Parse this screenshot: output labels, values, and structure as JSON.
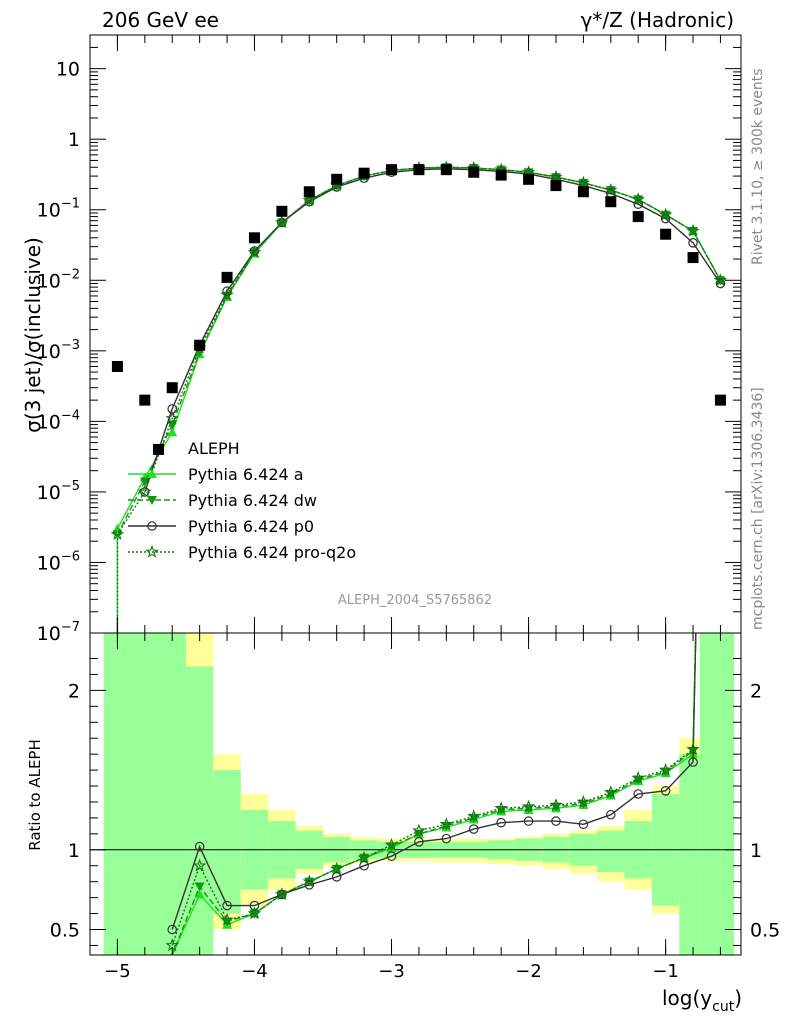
{
  "header": {
    "left": "206 GeV ee",
    "right": "γ*/Z (Hadronic)"
  },
  "side_labels": {
    "rivet": "Rivet 3.1.10, ≥ 300k events",
    "mcplots": "mcplots.cern.ch [arXiv:1306.3436]"
  },
  "watermark": "ALEPH_2004_S5765862",
  "colors": {
    "data": "#000000",
    "a": "#22dd22",
    "dw": "#119911",
    "p0": "#333333",
    "pro": "#117711",
    "band_total": "#ffff99",
    "band_stat": "#99ff99"
  },
  "chart_data": [
    {
      "type": "line",
      "ylabel": "σ(3 jet)/σ(inclusive)",
      "scale": "log",
      "xlim": [
        -5.2,
        -0.45
      ],
      "ylim": [
        1e-07,
        30
      ],
      "yticks": [
        {
          "v": 1e-07,
          "base": "10",
          "exp": "−7"
        },
        {
          "v": 1e-06,
          "base": "10",
          "exp": "−6"
        },
        {
          "v": 1e-05,
          "base": "10",
          "exp": "−5"
        },
        {
          "v": 0.0001,
          "base": "10",
          "exp": "−4"
        },
        {
          "v": 0.001,
          "base": "10",
          "exp": "−3"
        },
        {
          "v": 0.01,
          "base": "10",
          "exp": "−2"
        },
        {
          "v": 0.1,
          "base": "10",
          "exp": "−1"
        },
        {
          "v": 1,
          "base": "1",
          "exp": ""
        },
        {
          "v": 10,
          "base": "10",
          "exp": ""
        }
      ],
      "legend": [
        {
          "key": "data",
          "label": "ALEPH"
        },
        {
          "key": "a",
          "label": "Pythia 6.424 a"
        },
        {
          "key": "dw",
          "label": "Pythia 6.424 dw"
        },
        {
          "key": "p0",
          "label": "Pythia 6.424 p0"
        },
        {
          "key": "pro",
          "label": "Pythia 6.424 pro-q2o"
        }
      ],
      "data_points": {
        "x": [
          -5.0,
          -4.8,
          -4.7,
          -4.6,
          -4.4,
          -4.2,
          -4.0,
          -3.8,
          -3.6,
          -3.4,
          -3.2,
          -3.0,
          -2.8,
          -2.6,
          -2.4,
          -2.2,
          -2.0,
          -1.8,
          -1.6,
          -1.4,
          -1.2,
          -1.0,
          -0.8,
          -0.6
        ],
        "y": [
          0.0006,
          0.0002,
          4e-05,
          0.0003,
          0.0012,
          0.011,
          0.04,
          0.095,
          0.18,
          0.27,
          0.33,
          0.37,
          0.37,
          0.37,
          0.34,
          0.31,
          0.27,
          0.22,
          0.18,
          0.13,
          0.08,
          0.045,
          0.021,
          0.0002
        ]
      },
      "series": [
        {
          "key": "a",
          "x": [
            -5.0,
            -4.8,
            -4.6,
            -4.4,
            -4.2,
            -4.0,
            -3.8,
            -3.6,
            -3.4,
            -3.2,
            -3.0,
            -2.8,
            -2.6,
            -2.4,
            -2.2,
            -2.0,
            -1.8,
            -1.6,
            -1.4,
            -1.2,
            -1.0,
            -0.8,
            -0.6
          ],
          "y": [
            3e-06,
            1.6e-05,
            7e-05,
            0.0009,
            0.0058,
            0.024,
            0.065,
            0.135,
            0.22,
            0.3,
            0.36,
            0.39,
            0.4,
            0.39,
            0.37,
            0.34,
            0.29,
            0.24,
            0.19,
            0.14,
            0.085,
            0.05,
            0.01
          ]
        },
        {
          "key": "dw",
          "x": [
            -5.0,
            -4.8,
            -4.6,
            -4.4,
            -4.2,
            -4.0,
            -3.8,
            -3.6,
            -3.4,
            -3.2,
            -3.0,
            -2.8,
            -2.6,
            -2.4,
            -2.2,
            -2.0,
            -1.8,
            -1.6,
            -1.4,
            -1.2,
            -1.0,
            -0.8,
            -0.6
          ],
          "y": [
            2.5e-06,
            1.4e-05,
            9e-05,
            0.00095,
            0.006,
            0.025,
            0.066,
            0.136,
            0.22,
            0.3,
            0.36,
            0.39,
            0.4,
            0.39,
            0.37,
            0.34,
            0.29,
            0.24,
            0.19,
            0.14,
            0.085,
            0.05,
            0.01
          ]
        },
        {
          "key": "p0",
          "x": [
            -4.8,
            -4.6,
            -4.4,
            -4.2,
            -4.0,
            -3.8,
            -3.6,
            -3.4,
            -3.2,
            -3.0,
            -2.8,
            -2.6,
            -2.4,
            -2.2,
            -2.0,
            -1.8,
            -1.6,
            -1.4,
            -1.2,
            -1.0,
            -0.8,
            -0.6
          ],
          "y": [
            1e-05,
            0.00015,
            0.0012,
            0.007,
            0.026,
            0.066,
            0.13,
            0.21,
            0.28,
            0.34,
            0.37,
            0.38,
            0.37,
            0.35,
            0.32,
            0.27,
            0.22,
            0.17,
            0.12,
            0.075,
            0.034,
            0.009
          ]
        },
        {
          "key": "pro",
          "x": [
            -5.0,
            -4.8,
            -4.6,
            -4.4,
            -4.2,
            -4.0,
            -3.8,
            -3.6,
            -3.4,
            -3.2,
            -3.0,
            -2.8,
            -2.6,
            -2.4,
            -2.2,
            -2.0,
            -1.8,
            -1.6,
            -1.4,
            -1.2,
            -1.0,
            -0.8,
            -0.6
          ],
          "y": [
            2.5e-06,
            1e-05,
            0.00011,
            0.0011,
            0.0062,
            0.025,
            0.066,
            0.136,
            0.22,
            0.3,
            0.36,
            0.39,
            0.4,
            0.39,
            0.37,
            0.34,
            0.29,
            0.24,
            0.19,
            0.14,
            0.085,
            0.05,
            0.01
          ]
        }
      ]
    },
    {
      "type": "line",
      "ylabel": "Ratio to ALEPH",
      "xlabel": "log(y",
      "xlabel_sub": "cut",
      "xlabel_close": ")",
      "xlim": [
        -5.2,
        -0.45
      ],
      "ylim": [
        0.34,
        2.36
      ],
      "xticks": [
        {
          "v": -5,
          "label": "−5"
        },
        {
          "v": -4,
          "label": "−4"
        },
        {
          "v": -3,
          "label": "−3"
        },
        {
          "v": -2,
          "label": "−2"
        },
        {
          "v": -1,
          "label": "−1"
        }
      ],
      "yticks": [
        {
          "v": 0.5,
          "label": "0.5"
        },
        {
          "v": 1,
          "label": "1"
        },
        {
          "v": 2,
          "label": "2"
        }
      ],
      "bands": [
        {
          "x0": -5.1,
          "x1": -4.5,
          "tot": [
            0.0,
            3.0
          ],
          "stat": [
            0.0,
            3.0
          ]
        },
        {
          "x0": -4.5,
          "x1": -4.3,
          "tot": [
            0.0,
            3.0
          ],
          "stat": [
            0.0,
            2.15
          ]
        },
        {
          "x0": -4.3,
          "x1": -4.1,
          "tot": [
            0.5,
            1.6
          ],
          "stat": [
            0.6,
            1.5
          ]
        },
        {
          "x0": -4.1,
          "x1": -3.9,
          "tot": [
            0.65,
            1.35
          ],
          "stat": [
            0.75,
            1.25
          ]
        },
        {
          "x0": -3.9,
          "x1": -3.7,
          "tot": [
            0.75,
            1.25
          ],
          "stat": [
            0.82,
            1.18
          ]
        },
        {
          "x0": -3.7,
          "x1": -3.5,
          "tot": [
            0.85,
            1.15
          ],
          "stat": [
            0.88,
            1.12
          ]
        },
        {
          "x0": -3.5,
          "x1": -3.3,
          "tot": [
            0.9,
            1.1
          ],
          "stat": [
            0.92,
            1.08
          ]
        },
        {
          "x0": -3.3,
          "x1": -3.1,
          "tot": [
            0.92,
            1.08
          ],
          "stat": [
            0.94,
            1.06
          ]
        },
        {
          "x0": -3.1,
          "x1": -2.9,
          "tot": [
            0.93,
            1.07
          ],
          "stat": [
            0.95,
            1.05
          ]
        },
        {
          "x0": -2.9,
          "x1": -2.7,
          "tot": [
            0.93,
            1.07
          ],
          "stat": [
            0.95,
            1.05
          ]
        },
        {
          "x0": -2.7,
          "x1": -2.5,
          "tot": [
            0.92,
            1.07
          ],
          "stat": [
            0.95,
            1.05
          ]
        },
        {
          "x0": -2.5,
          "x1": -2.3,
          "tot": [
            0.92,
            1.07
          ],
          "stat": [
            0.95,
            1.05
          ]
        },
        {
          "x0": -2.3,
          "x1": -2.1,
          "tot": [
            0.91,
            1.07
          ],
          "stat": [
            0.94,
            1.06
          ]
        },
        {
          "x0": -2.1,
          "x1": -1.9,
          "tot": [
            0.9,
            1.08
          ],
          "stat": [
            0.93,
            1.07
          ]
        },
        {
          "x0": -1.9,
          "x1": -1.7,
          "tot": [
            0.88,
            1.1
          ],
          "stat": [
            0.92,
            1.08
          ]
        },
        {
          "x0": -1.7,
          "x1": -1.5,
          "tot": [
            0.85,
            1.12
          ],
          "stat": [
            0.9,
            1.1
          ]
        },
        {
          "x0": -1.5,
          "x1": -1.3,
          "tot": [
            0.8,
            1.15
          ],
          "stat": [
            0.86,
            1.12
          ]
        },
        {
          "x0": -1.3,
          "x1": -1.1,
          "tot": [
            0.75,
            1.25
          ],
          "stat": [
            0.82,
            1.18
          ]
        },
        {
          "x0": -1.1,
          "x1": -0.9,
          "tot": [
            0.6,
            1.4
          ],
          "stat": [
            0.65,
            1.35
          ]
        },
        {
          "x0": -0.9,
          "x1": -0.75,
          "tot": [
            0.0,
            1.7
          ],
          "stat": [
            0.0,
            1.6
          ]
        },
        {
          "x0": -0.75,
          "x1": -0.5,
          "tot": [
            0.0,
            3.0
          ],
          "stat": [
            0.0,
            3.0
          ]
        }
      ],
      "ratio_series": [
        {
          "key": "a",
          "x": [
            -4.6,
            -4.4,
            -4.2,
            -4.0,
            -3.8,
            -3.6,
            -3.4,
            -3.2,
            -3.0,
            -2.8,
            -2.6,
            -2.4,
            -2.2,
            -2.0,
            -1.8,
            -1.6,
            -1.4,
            -1.2,
            -1.0,
            -0.8,
            -0.78
          ],
          "y": [
            0.2,
            0.72,
            0.53,
            0.6,
            0.72,
            0.8,
            0.88,
            0.95,
            1.01,
            1.1,
            1.14,
            1.19,
            1.24,
            1.25,
            1.26,
            1.28,
            1.34,
            1.43,
            1.48,
            1.6,
            2.4
          ]
        },
        {
          "key": "dw",
          "x": [
            -4.6,
            -4.4,
            -4.2,
            -4.0,
            -3.8,
            -3.6,
            -3.4,
            -3.2,
            -3.0,
            -2.8,
            -2.6,
            -2.4,
            -2.2,
            -2.0,
            -1.8,
            -1.6,
            -1.4,
            -1.2,
            -1.0,
            -0.8,
            -0.78
          ],
          "y": [
            0.28,
            0.77,
            0.55,
            0.6,
            0.72,
            0.8,
            0.88,
            0.95,
            1.02,
            1.1,
            1.15,
            1.2,
            1.25,
            1.26,
            1.27,
            1.29,
            1.35,
            1.44,
            1.49,
            1.62,
            2.4
          ]
        },
        {
          "key": "p0",
          "x": [
            -4.6,
            -4.4,
            -4.2,
            -4.0,
            -3.8,
            -3.6,
            -3.4,
            -3.2,
            -3.0,
            -2.8,
            -2.6,
            -2.4,
            -2.2,
            -2.0,
            -1.8,
            -1.6,
            -1.4,
            -1.2,
            -1.0,
            -0.8,
            -0.78
          ],
          "y": [
            0.5,
            1.02,
            0.65,
            0.65,
            0.72,
            0.78,
            0.83,
            0.9,
            0.96,
            1.05,
            1.07,
            1.13,
            1.17,
            1.18,
            1.18,
            1.16,
            1.22,
            1.35,
            1.37,
            1.55,
            2.4
          ]
        },
        {
          "key": "pro",
          "x": [
            -4.6,
            -4.4,
            -4.2,
            -4.0,
            -3.8,
            -3.6,
            -3.4,
            -3.2,
            -3.0,
            -2.8,
            -2.6,
            -2.4,
            -2.2,
            -2.0,
            -1.8,
            -1.6,
            -1.4,
            -1.2,
            -1.0,
            -0.8,
            -0.78
          ],
          "y": [
            0.4,
            0.9,
            0.56,
            0.6,
            0.72,
            0.8,
            0.88,
            0.95,
            1.03,
            1.12,
            1.16,
            1.21,
            1.26,
            1.27,
            1.28,
            1.3,
            1.36,
            1.45,
            1.5,
            1.63,
            2.4
          ]
        }
      ]
    }
  ]
}
